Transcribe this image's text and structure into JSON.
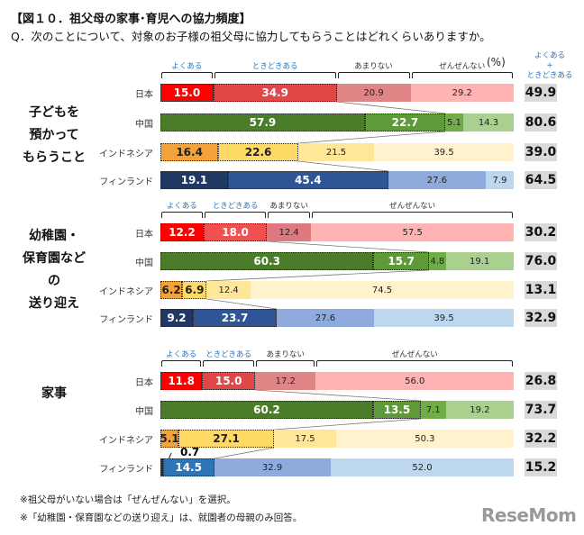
{
  "title": "【図１０．祖父母の家事･育児への協力頻度】",
  "question": "Q．次のことについて、対象のお子様の祖父母に協力してもらうことはどれくらいありますか。",
  "unit": "(%)",
  "sum_header": [
    "よくある",
    "+",
    "ときどきある"
  ],
  "notes": [
    "※祖父母がいない場合は「ぜんぜんない」を選択。",
    "※「幼稚園・保育園などの送り迎え」は、就園者の母親のみ回答。"
  ],
  "logo": "ReseMom",
  "chart_data": {
    "type": "bar",
    "orientation": "horizontal-stacked-100",
    "legend": [
      "よくある",
      "ときどきある",
      "あまりない",
      "ぜんぜんない"
    ],
    "legend_color": "#2e75b6",
    "groups": [
      {
        "name": "子どもを預かってもらうこと",
        "lines": [
          "子どもを",
          "預かって",
          "もらうこと"
        ],
        "rows": [
          {
            "country": "日本",
            "values": [
              15.0,
              34.9,
              20.9,
              29.2
            ],
            "total": 49.9,
            "colors": [
              "#ff0000",
              "#e04848",
              "#e08486",
              "#ffb3b3"
            ]
          },
          {
            "country": "中国",
            "values": [
              57.9,
              22.7,
              5.1,
              14.3
            ],
            "total": 80.6,
            "colors": [
              "#4a7c2a",
              "#5f9a38",
              "#70ad47",
              "#a9d08e"
            ]
          },
          {
            "country": "インドネシア",
            "values": [
              16.4,
              22.6,
              21.5,
              39.5
            ],
            "total": 39.0,
            "colors": [
              "#f4a23a",
              "#ffd966",
              "#ffe699",
              "#fff2cc"
            ]
          },
          {
            "country": "フィンランド",
            "values": [
              19.1,
              45.4,
              27.6,
              7.9
            ],
            "total": 64.5,
            "colors": [
              "#1f3864",
              "#2f5597",
              "#8faadc",
              "#bdd7ee"
            ]
          }
        ]
      },
      {
        "name": "幼稚園・保育園などの送り迎え",
        "lines": [
          "幼稚園・",
          "保育園など",
          "の",
          "送り迎え"
        ],
        "rows": [
          {
            "country": "日本",
            "values": [
              12.2,
              18.0,
              12.4,
              57.5
            ],
            "total": 30.2,
            "colors": [
              "#ff0000",
              "#f05050",
              "#e07880",
              "#ffb3b3"
            ]
          },
          {
            "country": "中国",
            "values": [
              60.3,
              15.7,
              4.8,
              19.1
            ],
            "total": 76.0,
            "colors": [
              "#4a7c2a",
              "#5f9a38",
              "#70ad47",
              "#a9d08e"
            ]
          },
          {
            "country": "インドネシア",
            "values": [
              6.2,
              6.9,
              12.4,
              74.5
            ],
            "total": 13.1,
            "colors": [
              "#f4a23a",
              "#ffd966",
              "#ffe699",
              "#fff2cc"
            ]
          },
          {
            "country": "フィンランド",
            "values": [
              9.2,
              23.7,
              27.6,
              39.5
            ],
            "total": 32.9,
            "colors": [
              "#1f3864",
              "#2f5597",
              "#8faadc",
              "#bdd7ee"
            ]
          }
        ]
      },
      {
        "name": "家事",
        "lines": [
          "家事"
        ],
        "rows": [
          {
            "country": "日本",
            "values": [
              11.8,
              15.0,
              17.2,
              56.0
            ],
            "total": 26.8,
            "colors": [
              "#ff0000",
              "#e04848",
              "#e08486",
              "#ffb3b3"
            ]
          },
          {
            "country": "中国",
            "values": [
              60.2,
              13.5,
              7.1,
              19.2
            ],
            "total": 73.7,
            "colors": [
              "#4a7c2a",
              "#5f9a38",
              "#70ad47",
              "#a9d08e"
            ]
          },
          {
            "country": "インドネシア",
            "values": [
              5.1,
              27.1,
              17.5,
              50.3
            ],
            "total": 32.2,
            "colors": [
              "#f4a23a",
              "#ffd966",
              "#ffe699",
              "#fff2cc"
            ]
          },
          {
            "country": "フィンランド",
            "values": [
              0.7,
              14.5,
              32.9,
              52.0
            ],
            "total": 15.2,
            "colors": [
              "#1f3864",
              "#2e75b6",
              "#8faadc",
              "#bdd7ee"
            ]
          }
        ]
      }
    ]
  }
}
